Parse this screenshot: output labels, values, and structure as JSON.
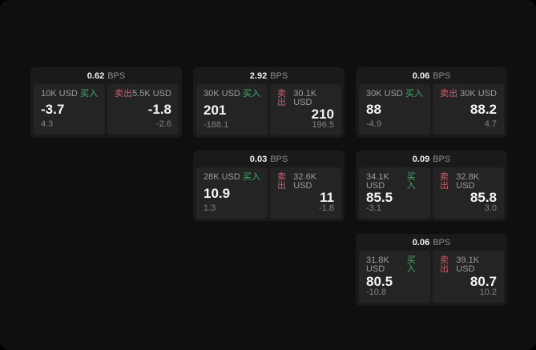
{
  "labels": {
    "bps_unit": "BPS",
    "buy": "买入",
    "sell": "卖出"
  },
  "colors": {
    "page_bg": "#0e0f0e",
    "card_bg": "#1a1a1a",
    "panel_bg": "#242424",
    "buy_green": "#3fae6a",
    "sell_red": "#d05c6e",
    "primary_text": "#f5f5f5",
    "muted_text": "#9d9d9d",
    "sub_text": "#828282"
  },
  "cards": [
    {
      "bps": "0.62",
      "buy": {
        "amount": "10K USD",
        "main": "-3.7",
        "sub": "4.3"
      },
      "sell": {
        "amount": "5.5K USD",
        "main": "-1.8",
        "sub": "-2.6"
      }
    },
    {
      "bps": "2.92",
      "buy": {
        "amount": "30K USD",
        "main": "201",
        "sub": "-188.1"
      },
      "sell": {
        "amount": "30.1K USD",
        "main": "210",
        "sub": "196.5"
      }
    },
    {
      "bps": "0.06",
      "buy": {
        "amount": "30K USD",
        "main": "88",
        "sub": "-4.9"
      },
      "sell": {
        "amount": "30K USD",
        "main": "88.2",
        "sub": "4.7"
      }
    },
    {
      "bps": "0.03",
      "buy": {
        "amount": "28K USD",
        "main": "10.9",
        "sub": "1.3"
      },
      "sell": {
        "amount": "32.6K USD",
        "main": "11",
        "sub": "-1.8"
      }
    },
    {
      "bps": "0.09",
      "buy": {
        "amount": "34.1K USD",
        "main": "85.5",
        "sub": "-3.1"
      },
      "sell": {
        "amount": "32.8K USD",
        "main": "85.8",
        "sub": "3.0"
      }
    },
    {
      "bps": "0.06",
      "buy": {
        "amount": "31.8K USD",
        "main": "80.5",
        "sub": "-10.8"
      },
      "sell": {
        "amount": "39.1K USD",
        "main": "80.7",
        "sub": "10.2"
      }
    }
  ]
}
